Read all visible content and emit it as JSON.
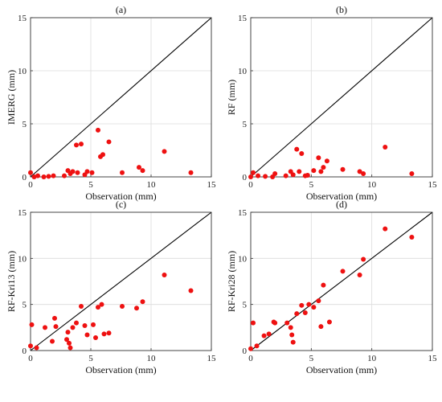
{
  "chart_data": [
    {
      "type": "scatter",
      "title": "(a)",
      "xlabel": "Observation (mm)",
      "ylabel": "IMERG (mm)",
      "xlim": [
        0,
        15
      ],
      "ylim": [
        0,
        15
      ],
      "xticks": [
        0,
        5,
        10,
        15
      ],
      "yticks": [
        0,
        5,
        10,
        15
      ],
      "grid": true,
      "reference_line": [
        [
          0,
          0
        ],
        [
          15,
          15
        ]
      ],
      "marker_color": "#ee1111",
      "x": [
        0.0,
        0.3,
        0.6,
        1.1,
        1.5,
        1.9,
        2.8,
        3.1,
        3.3,
        3.5,
        3.8,
        3.9,
        4.2,
        4.5,
        4.7,
        5.1,
        5.6,
        5.8,
        6.0,
        6.5,
        7.6,
        9.0,
        9.3,
        11.1,
        13.3
      ],
      "y": [
        0.4,
        0.0,
        0.1,
        0.0,
        0.05,
        0.1,
        0.1,
        0.6,
        0.3,
        0.5,
        3.0,
        0.4,
        3.1,
        0.2,
        0.5,
        0.4,
        4.4,
        1.9,
        2.1,
        3.3,
        0.4,
        0.9,
        0.6,
        2.4,
        0.4
      ]
    },
    {
      "type": "scatter",
      "title": "(b)",
      "xlabel": "Observation (mm)",
      "ylabel": "RF (mm)",
      "xlim": [
        0,
        15
      ],
      "ylim": [
        0,
        15
      ],
      "xticks": [
        0,
        5,
        10,
        15
      ],
      "yticks": [
        0,
        5,
        10,
        15
      ],
      "grid": true,
      "reference_line": [
        [
          0,
          0
        ],
        [
          15,
          15
        ]
      ],
      "marker_color": "#ee1111",
      "x": [
        0.0,
        0.2,
        0.6,
        1.2,
        1.8,
        2.0,
        2.9,
        3.3,
        3.5,
        3.8,
        4.0,
        4.2,
        4.5,
        4.7,
        5.2,
        5.6,
        5.8,
        6.0,
        6.3,
        7.6,
        9.0,
        9.3,
        11.1,
        13.3
      ],
      "y": [
        0.0,
        0.4,
        0.1,
        0.05,
        0.0,
        0.3,
        0.1,
        0.5,
        0.2,
        2.6,
        0.5,
        2.2,
        0.1,
        0.15,
        0.6,
        1.8,
        0.5,
        0.9,
        1.5,
        0.7,
        0.5,
        0.3,
        2.8,
        0.3
      ]
    },
    {
      "type": "scatter",
      "title": "(c)",
      "xlabel": "Observation (mm)",
      "ylabel": "RF-Kri13 (mm)",
      "xlim": [
        0,
        15
      ],
      "ylim": [
        0,
        15
      ],
      "xticks": [
        0,
        5,
        10,
        15
      ],
      "yticks": [
        0,
        5,
        10,
        15
      ],
      "grid": true,
      "reference_line": [
        [
          0,
          0
        ],
        [
          15,
          15
        ]
      ],
      "marker_color": "#ee1111",
      "x": [
        0.0,
        0.1,
        0.5,
        1.2,
        1.8,
        2.0,
        2.1,
        3.0,
        3.1,
        3.2,
        3.3,
        3.5,
        3.8,
        4.2,
        4.5,
        4.7,
        5.2,
        5.4,
        5.6,
        5.9,
        6.1,
        6.5,
        7.6,
        8.8,
        9.3,
        11.1,
        13.3
      ],
      "y": [
        0.5,
        2.8,
        0.3,
        2.5,
        1.0,
        3.5,
        2.6,
        1.2,
        2.0,
        0.8,
        0.3,
        2.5,
        3.0,
        4.8,
        2.7,
        1.7,
        2.8,
        1.4,
        4.7,
        5.0,
        1.8,
        1.9,
        4.8,
        4.6,
        5.3,
        8.2,
        6.5
      ]
    },
    {
      "type": "scatter",
      "title": "(d)",
      "xlabel": "Observation (mm)",
      "ylabel": "RF-Kri28 (mm)",
      "xlim": [
        0,
        15
      ],
      "ylim": [
        0,
        15
      ],
      "xticks": [
        0,
        5,
        10,
        15
      ],
      "yticks": [
        0,
        5,
        10,
        15
      ],
      "grid": true,
      "reference_line": [
        [
          0,
          0
        ],
        [
          15,
          15
        ]
      ],
      "marker_color": "#ee1111",
      "x": [
        0.0,
        0.2,
        0.5,
        1.1,
        1.5,
        1.9,
        2.0,
        3.0,
        3.3,
        3.4,
        3.5,
        3.8,
        4.2,
        4.5,
        4.8,
        5.2,
        5.6,
        5.8,
        6.0,
        6.5,
        7.6,
        9.0,
        9.3,
        11.1,
        13.3
      ],
      "y": [
        0.2,
        3.0,
        0.5,
        1.6,
        1.8,
        3.1,
        3.0,
        3.0,
        2.5,
        1.7,
        0.9,
        4.0,
        4.9,
        4.1,
        5.0,
        4.7,
        5.4,
        2.6,
        7.1,
        3.1,
        8.6,
        8.2,
        9.9,
        13.2,
        12.3
      ]
    }
  ]
}
